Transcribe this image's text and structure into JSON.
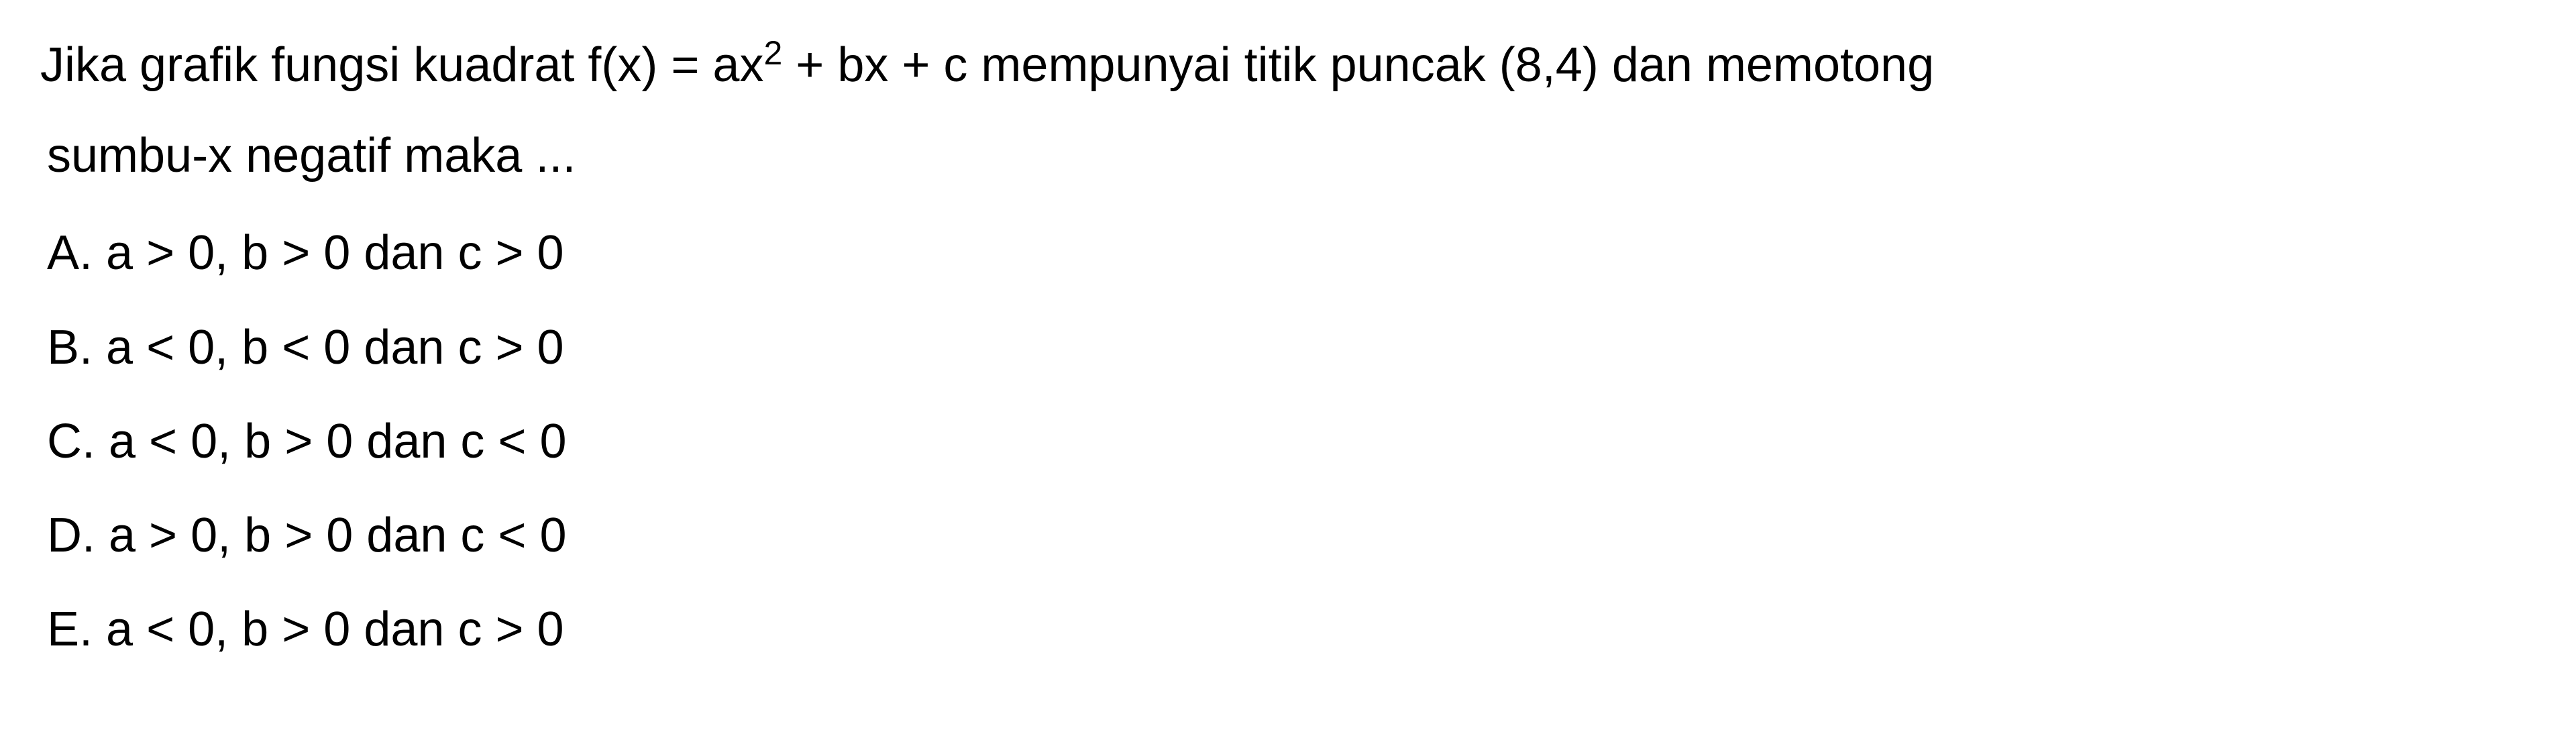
{
  "question": {
    "line1_part1": "Jika grafik fungsi kuadrat f(x) = ax",
    "line1_sup": "2",
    "line1_part2": " + bx + c mempunyai titik puncak (8,4) dan memotong",
    "line2": "sumbu-x negatif maka ..."
  },
  "options": {
    "A": "A. a > 0, b > 0 dan c > 0",
    "B": "B. a < 0, b < 0 dan c > 0",
    "C": "C. a < 0, b > 0 dan c < 0",
    "D": "D. a > 0, b > 0 dan c < 0",
    "E": "E. a < 0, b > 0 dan c > 0"
  },
  "styling": {
    "font_size_pt": 54,
    "sup_font_size_pt": 38,
    "text_color": "#000000",
    "background_color": "#ffffff",
    "line_height": 1.6,
    "font_weight": 400,
    "font_family": "Segoe UI, Arial, sans-serif"
  }
}
